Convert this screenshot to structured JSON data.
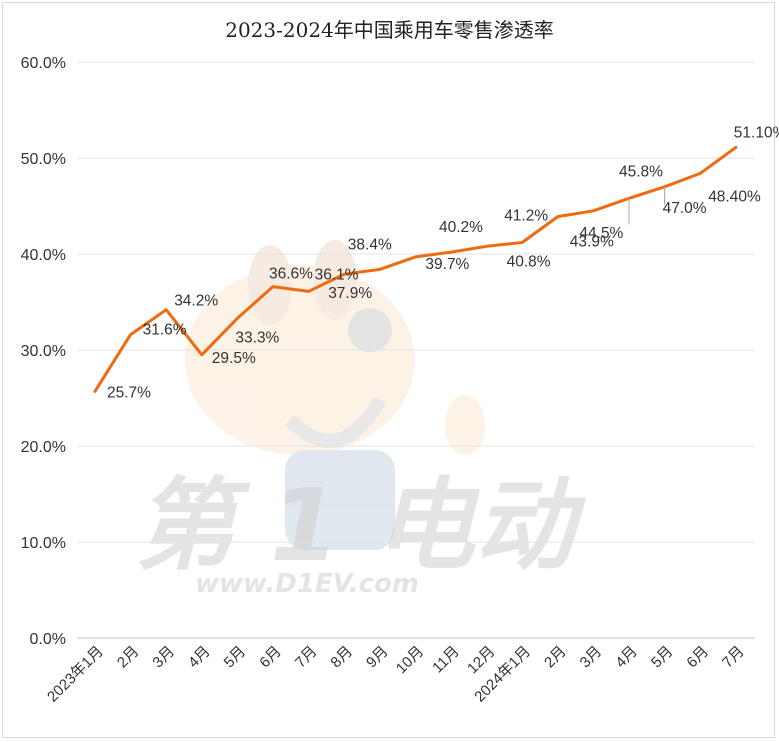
{
  "chart_data": {
    "type": "line",
    "title": "2023-2024年中国乘用车零售渗透率",
    "categories": [
      "2023年1月",
      "2月",
      "3月",
      "4月",
      "5月",
      "6月",
      "7月",
      "8月",
      "9月",
      "10月",
      "11月",
      "12月",
      "2024年1月",
      "2月",
      "3月",
      "4月",
      "5月",
      "6月",
      "7月"
    ],
    "series": [
      {
        "values": [
          25.7,
          31.6,
          34.2,
          29.5,
          33.3,
          36.6,
          36.1,
          37.9,
          38.4,
          39.7,
          40.2,
          40.8,
          41.2,
          43.9,
          44.5,
          45.8,
          47.0,
          48.4,
          51.1
        ],
        "labels": [
          "25.7%",
          "31.6%",
          "34.2%",
          "29.5%",
          "33.3%",
          "36.6%",
          "36.1%",
          "37.9%",
          "38.4%",
          "39.7%",
          "40.2%",
          "40.8%",
          "41.2%",
          "43.9%",
          "44.5%",
          "45.8%",
          "47.0%",
          "48.40%",
          "51.10%"
        ]
      }
    ],
    "yticks": [
      "0.0%",
      "10.0%",
      "20.0%",
      "30.0%",
      "40.0%",
      "50.0%",
      "60.0%"
    ],
    "ylim": [
      0,
      60
    ],
    "grid": true,
    "line_color": "#f06a10"
  },
  "watermark": {
    "brand_text": "第 1 电动",
    "url_text": "www.D1EV.com"
  }
}
